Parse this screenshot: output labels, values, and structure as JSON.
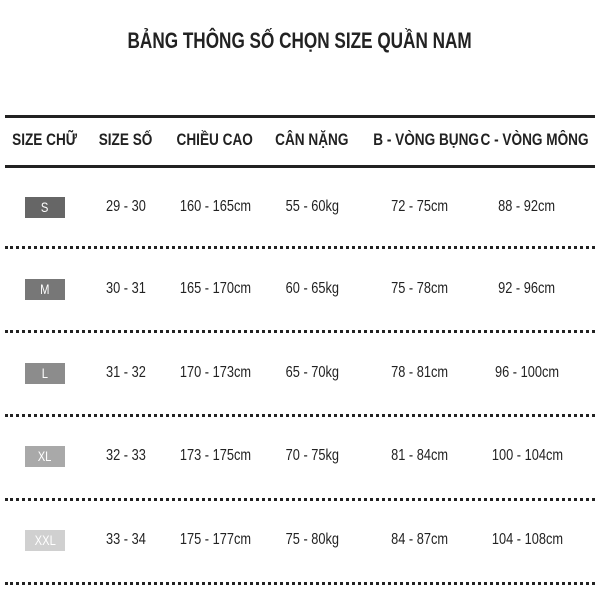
{
  "title": "BẢNG THÔNG SỐ CHỌN SIZE QUẦN NAM",
  "headers": [
    "SIZE CHỮ",
    "SIZE SỐ",
    "CHIỀU CAO",
    "CÂN NẶNG",
    "B - VÒNG BỤNG",
    "C - VÒNG MÔNG"
  ],
  "rows": [
    {
      "size": "S",
      "number": "29 - 30",
      "height": "160 - 165cm",
      "weight": "55 - 60kg",
      "waist": "72 - 75cm",
      "hip": "88 - 92cm",
      "color": "#666666"
    },
    {
      "size": "M",
      "number": "30 - 31",
      "height": "165 - 170cm",
      "weight": "60 - 65kg",
      "waist": "75 - 78cm",
      "hip": "92 - 96cm",
      "color": "#777777"
    },
    {
      "size": "L",
      "number": "31 - 32",
      "height": "170 - 173cm",
      "weight": "65 - 70kg",
      "waist": "78 - 81cm",
      "hip": "96 - 100cm",
      "color": "#8c8c8c"
    },
    {
      "size": "XL",
      "number": "32 - 33",
      "height": "173 - 175cm",
      "weight": "70 - 75kg",
      "waist": "81 - 84cm",
      "hip": "100 - 104cm",
      "color": "#a9a9a9"
    },
    {
      "size": "XXL",
      "number": "33 - 34",
      "height": "175 - 177cm",
      "weight": "75 - 80kg",
      "waist": "84 - 87cm",
      "hip": "104 - 108cm",
      "color": "#d0d0d0"
    }
  ]
}
